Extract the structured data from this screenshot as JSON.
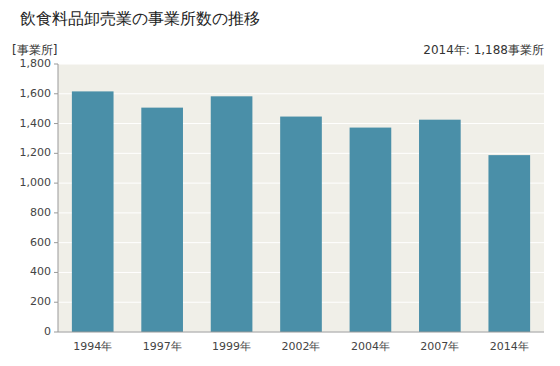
{
  "chart_data": {
    "type": "bar",
    "title": "飲食料品卸売業の事業所数の推移",
    "ylabel": "[事業所]",
    "annotation": "2014年: 1,188事業所",
    "categories": [
      "1994年",
      "1997年",
      "1999年",
      "2002年",
      "2004年",
      "2007年",
      "2014年"
    ],
    "values": [
      1616,
      1507,
      1583,
      1447,
      1373,
      1426,
      1188
    ],
    "color": "#4a8fa8",
    "ylim": [
      0,
      1800
    ],
    "yticks": [
      0,
      200,
      400,
      600,
      800,
      {
        "value": 1000,
        "label": "1,000"
      },
      {
        "value": 1200,
        "label": "1,200"
      },
      {
        "value": 1400,
        "label": "1,400"
      },
      {
        "value": 1600,
        "label": "1,600"
      },
      {
        "value": 1800,
        "label": "1,800"
      }
    ],
    "grid": true
  }
}
